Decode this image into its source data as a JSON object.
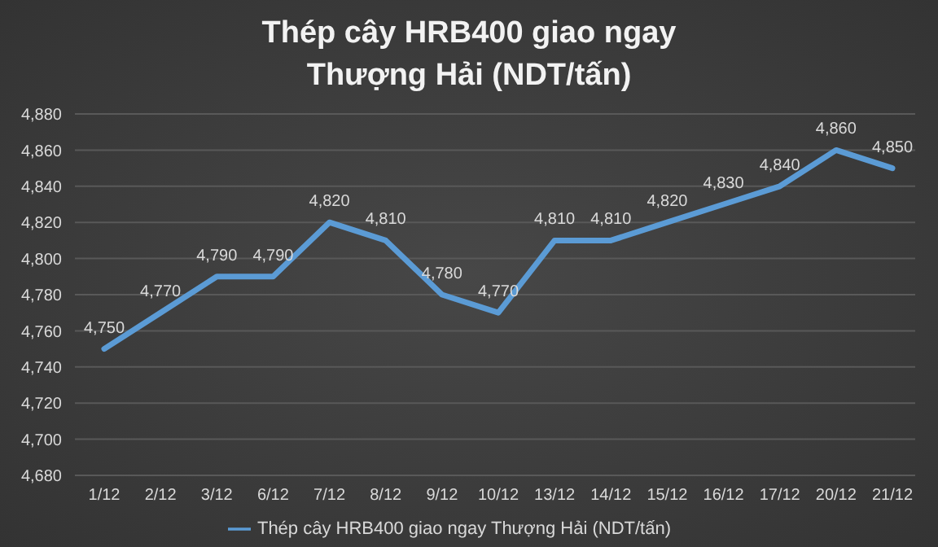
{
  "chart_data": {
    "type": "line",
    "title": "Thép cây HRB400 giao ngay Thượng Hải (NDT/tấn)",
    "categories": [
      "1/12",
      "2/12",
      "3/12",
      "6/12",
      "7/12",
      "8/12",
      "9/12",
      "10/12",
      "13/12",
      "14/12",
      "15/12",
      "16/12",
      "17/12",
      "20/12",
      "21/12"
    ],
    "series": [
      {
        "name": "Thép cây HRB400 giao ngay Thượng Hải (NDT/tấn)",
        "color": "#5b9bd5",
        "values": [
          4750,
          4770,
          4790,
          4790,
          4820,
          4810,
          4780,
          4770,
          4810,
          4810,
          4820,
          4830,
          4840,
          4860,
          4850
        ],
        "value_labels": [
          "4,750",
          "4,770",
          "4,790",
          "4,790",
          "4,820",
          "4,810",
          "4,780",
          "4,770",
          "4,810",
          "4,810",
          "4,820",
          "4,830",
          "4,840",
          "4,860",
          "4,850"
        ]
      }
    ],
    "ylim": [
      4680,
      4880
    ],
    "yticks": [
      {
        "value": 4680,
        "label": "4,680"
      },
      {
        "value": 4700,
        "label": "4,700"
      },
      {
        "value": 4720,
        "label": "4,720"
      },
      {
        "value": 4740,
        "label": "4,740"
      },
      {
        "value": 4760,
        "label": "4,760"
      },
      {
        "value": 4780,
        "label": "4,780"
      },
      {
        "value": 4800,
        "label": "4,800"
      },
      {
        "value": 4820,
        "label": "4,820"
      },
      {
        "value": 4840,
        "label": "4,840"
      },
      {
        "value": 4860,
        "label": "4,860"
      },
      {
        "value": 4880,
        "label": "4,880"
      }
    ],
    "grid": "y",
    "legend": "bottom",
    "marker": "none",
    "line_style": "solid"
  }
}
